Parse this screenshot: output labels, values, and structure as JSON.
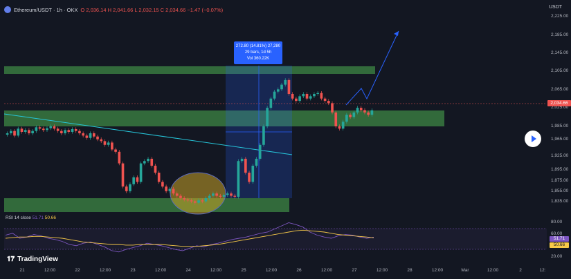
{
  "header": {
    "symbol": "Ethereum/USDT · 1h · OKX",
    "ohlc": "O 2,036.14  H 2,041.66  L 2,032.15  C 2,034.66  −1.47 (−0.07%)"
  },
  "currency": "USDT",
  "price_axis": [
    "2,225.00",
    "2,185.00",
    "2,145.00",
    "2,105.00",
    "2,065.00",
    "2,025.00",
    "1,985.00",
    "1,965.00",
    "1,925.00",
    "1,895.00",
    "1,875.00",
    "1,855.00",
    "1,835.00"
  ],
  "price_badge": "2,034.66",
  "rsi_axis": [
    "80.00",
    "60.00",
    "20.00"
  ],
  "rsi_badges": [
    "51.71",
    "50.66"
  ],
  "rsi_label": {
    "name": "RSI 14 close",
    "v1": "51.71",
    "v2": "50.66"
  },
  "measure": {
    "line1": "272.80 (14.81%) 27,280",
    "line2": "29 bars, 1d 5h",
    "line3": "Vol 360.22K"
  },
  "time_axis": [
    "21",
    "12:00",
    "22",
    "12:00",
    "23",
    "12:00",
    "24",
    "12:00",
    "25",
    "12:00",
    "26",
    "12:00",
    "27",
    "12:00",
    "28",
    "12:00",
    "Mar",
    "12:00",
    "2",
    "12:"
  ],
  "brand": "TradingView",
  "colors": {
    "bg": "#131722",
    "up": "#26a69a",
    "down": "#ef5350",
    "zone": "#4caf50",
    "rsi": "#7e57c2",
    "rsi_ma": "#f7c948",
    "accent": "#2962ff"
  },
  "chart_data": {
    "type": "candlestick",
    "title": "Ethereum/USDT · 1h · OKX",
    "ylabel": "USDT",
    "ylim": [
      1815,
      2240
    ],
    "closes": [
      1985,
      1990,
      1980,
      1995,
      1988,
      1992,
      1985,
      1990,
      1998,
      1995,
      1992,
      1996,
      2000,
      1995,
      1990,
      1985,
      1992,
      1988,
      1994,
      1990,
      1985,
      1980,
      1975,
      1985,
      1978,
      1972,
      1968,
      1960,
      1965,
      1950,
      1945,
      1920,
      1870,
      1860,
      1875,
      1890,
      1880,
      1920,
      1925,
      1930,
      1915,
      1900,
      1880,
      1870,
      1860,
      1865,
      1855,
      1850,
      1845,
      1842,
      1840,
      1838,
      1835,
      1840,
      1838,
      1845,
      1850,
      1855,
      1850,
      1848,
      1852,
      1855,
      1850,
      1848,
      1925,
      1930,
      1900,
      1880,
      1915,
      1930,
      1960,
      2000,
      2040,
      2060,
      2075,
      2080,
      2090,
      2100,
      2070,
      2060,
      2055,
      2065,
      2070,
      2060,
      2065,
      2070,
      2072,
      2060,
      2055,
      2050,
      2030,
      2000,
      1995,
      2010,
      2025,
      2020,
      2030,
      2040,
      2035,
      2030,
      2025,
      2034.66
    ],
    "rsi": [
      55,
      58,
      50,
      52,
      56,
      54,
      50,
      48,
      45,
      40,
      38,
      42,
      44,
      40,
      36,
      30,
      28,
      32,
      35,
      38,
      42,
      40,
      38,
      35,
      32,
      30,
      34,
      38,
      36,
      40,
      42,
      45,
      48,
      50,
      52,
      55,
      58,
      60,
      65,
      70,
      75,
      72,
      68,
      60,
      55,
      52,
      50,
      54,
      56,
      55,
      52,
      50,
      51.71
    ],
    "rsi_ma": [
      50,
      51,
      52,
      52,
      53,
      53,
      52,
      51,
      50,
      48,
      46,
      44,
      43,
      42,
      41,
      40,
      40,
      39,
      39,
      40,
      40,
      40,
      40,
      39,
      38,
      37,
      37,
      37,
      38,
      39,
      40,
      42,
      44,
      46,
      48,
      50,
      52,
      54,
      56,
      58,
      60,
      62,
      63,
      62,
      61,
      60,
      58,
      56,
      55,
      54,
      53,
      52,
      50.66
    ]
  }
}
